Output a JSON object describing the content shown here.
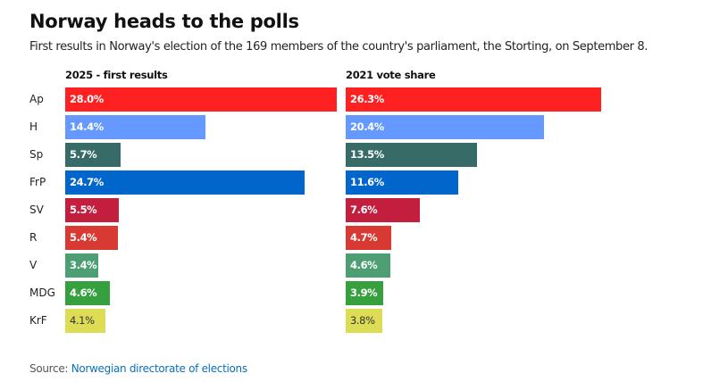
{
  "chart_data": [
    {
      "type": "bar",
      "orientation": "horizontal",
      "title": "2025 - first results",
      "categories": [
        "Ap",
        "H",
        "Sp",
        "FrP",
        "SV",
        "R",
        "V",
        "MDG",
        "KrF"
      ],
      "values": [
        28.0,
        14.4,
        5.7,
        24.7,
        5.5,
        5.4,
        3.4,
        4.6,
        4.1
      ],
      "labels": [
        "28.0%",
        "14.4%",
        "5.7%",
        "24.7%",
        "5.5%",
        "5.4%",
        "3.4%",
        "4.6%",
        "4.1%"
      ],
      "xlabel": "",
      "ylabel": "",
      "xlim": [
        0,
        28.0
      ],
      "grid": false,
      "legend": "none"
    },
    {
      "type": "bar",
      "orientation": "horizontal",
      "title": "2021 vote share",
      "categories": [
        "Ap",
        "H",
        "Sp",
        "FrP",
        "SV",
        "R",
        "V",
        "MDG",
        "KrF"
      ],
      "values": [
        26.3,
        20.4,
        13.5,
        11.6,
        7.6,
        4.7,
        4.6,
        3.9,
        3.8
      ],
      "labels": [
        "26.3%",
        "20.4%",
        "13.5%",
        "11.6%",
        "7.6%",
        "4.7%",
        "4.6%",
        "3.9%",
        "3.8%"
      ],
      "xlabel": "",
      "ylabel": "",
      "xlim": [
        0,
        28.0
      ],
      "grid": false,
      "legend": "none"
    }
  ],
  "header": {
    "title": "Norway heads to the polls",
    "subtitle": "First results in Norway's election of the 169 members of the country's parliament, the Storting, on September 8."
  },
  "party_colors": {
    "Ap": "#ff2121",
    "H": "#6699ff",
    "Sp": "#376b67",
    "FrP": "#0066cc",
    "SV": "#c41e3e",
    "R": "#d83a33",
    "V": "#4e9e74",
    "MDG": "#37a03e",
    "KrF": "#dddd55"
  },
  "dark_label_parties": [
    "KrF"
  ],
  "footer": {
    "source_prefix": "Source: ",
    "source_link": "Norwegian directorate of elections",
    "link_color": "#0a70b8"
  }
}
